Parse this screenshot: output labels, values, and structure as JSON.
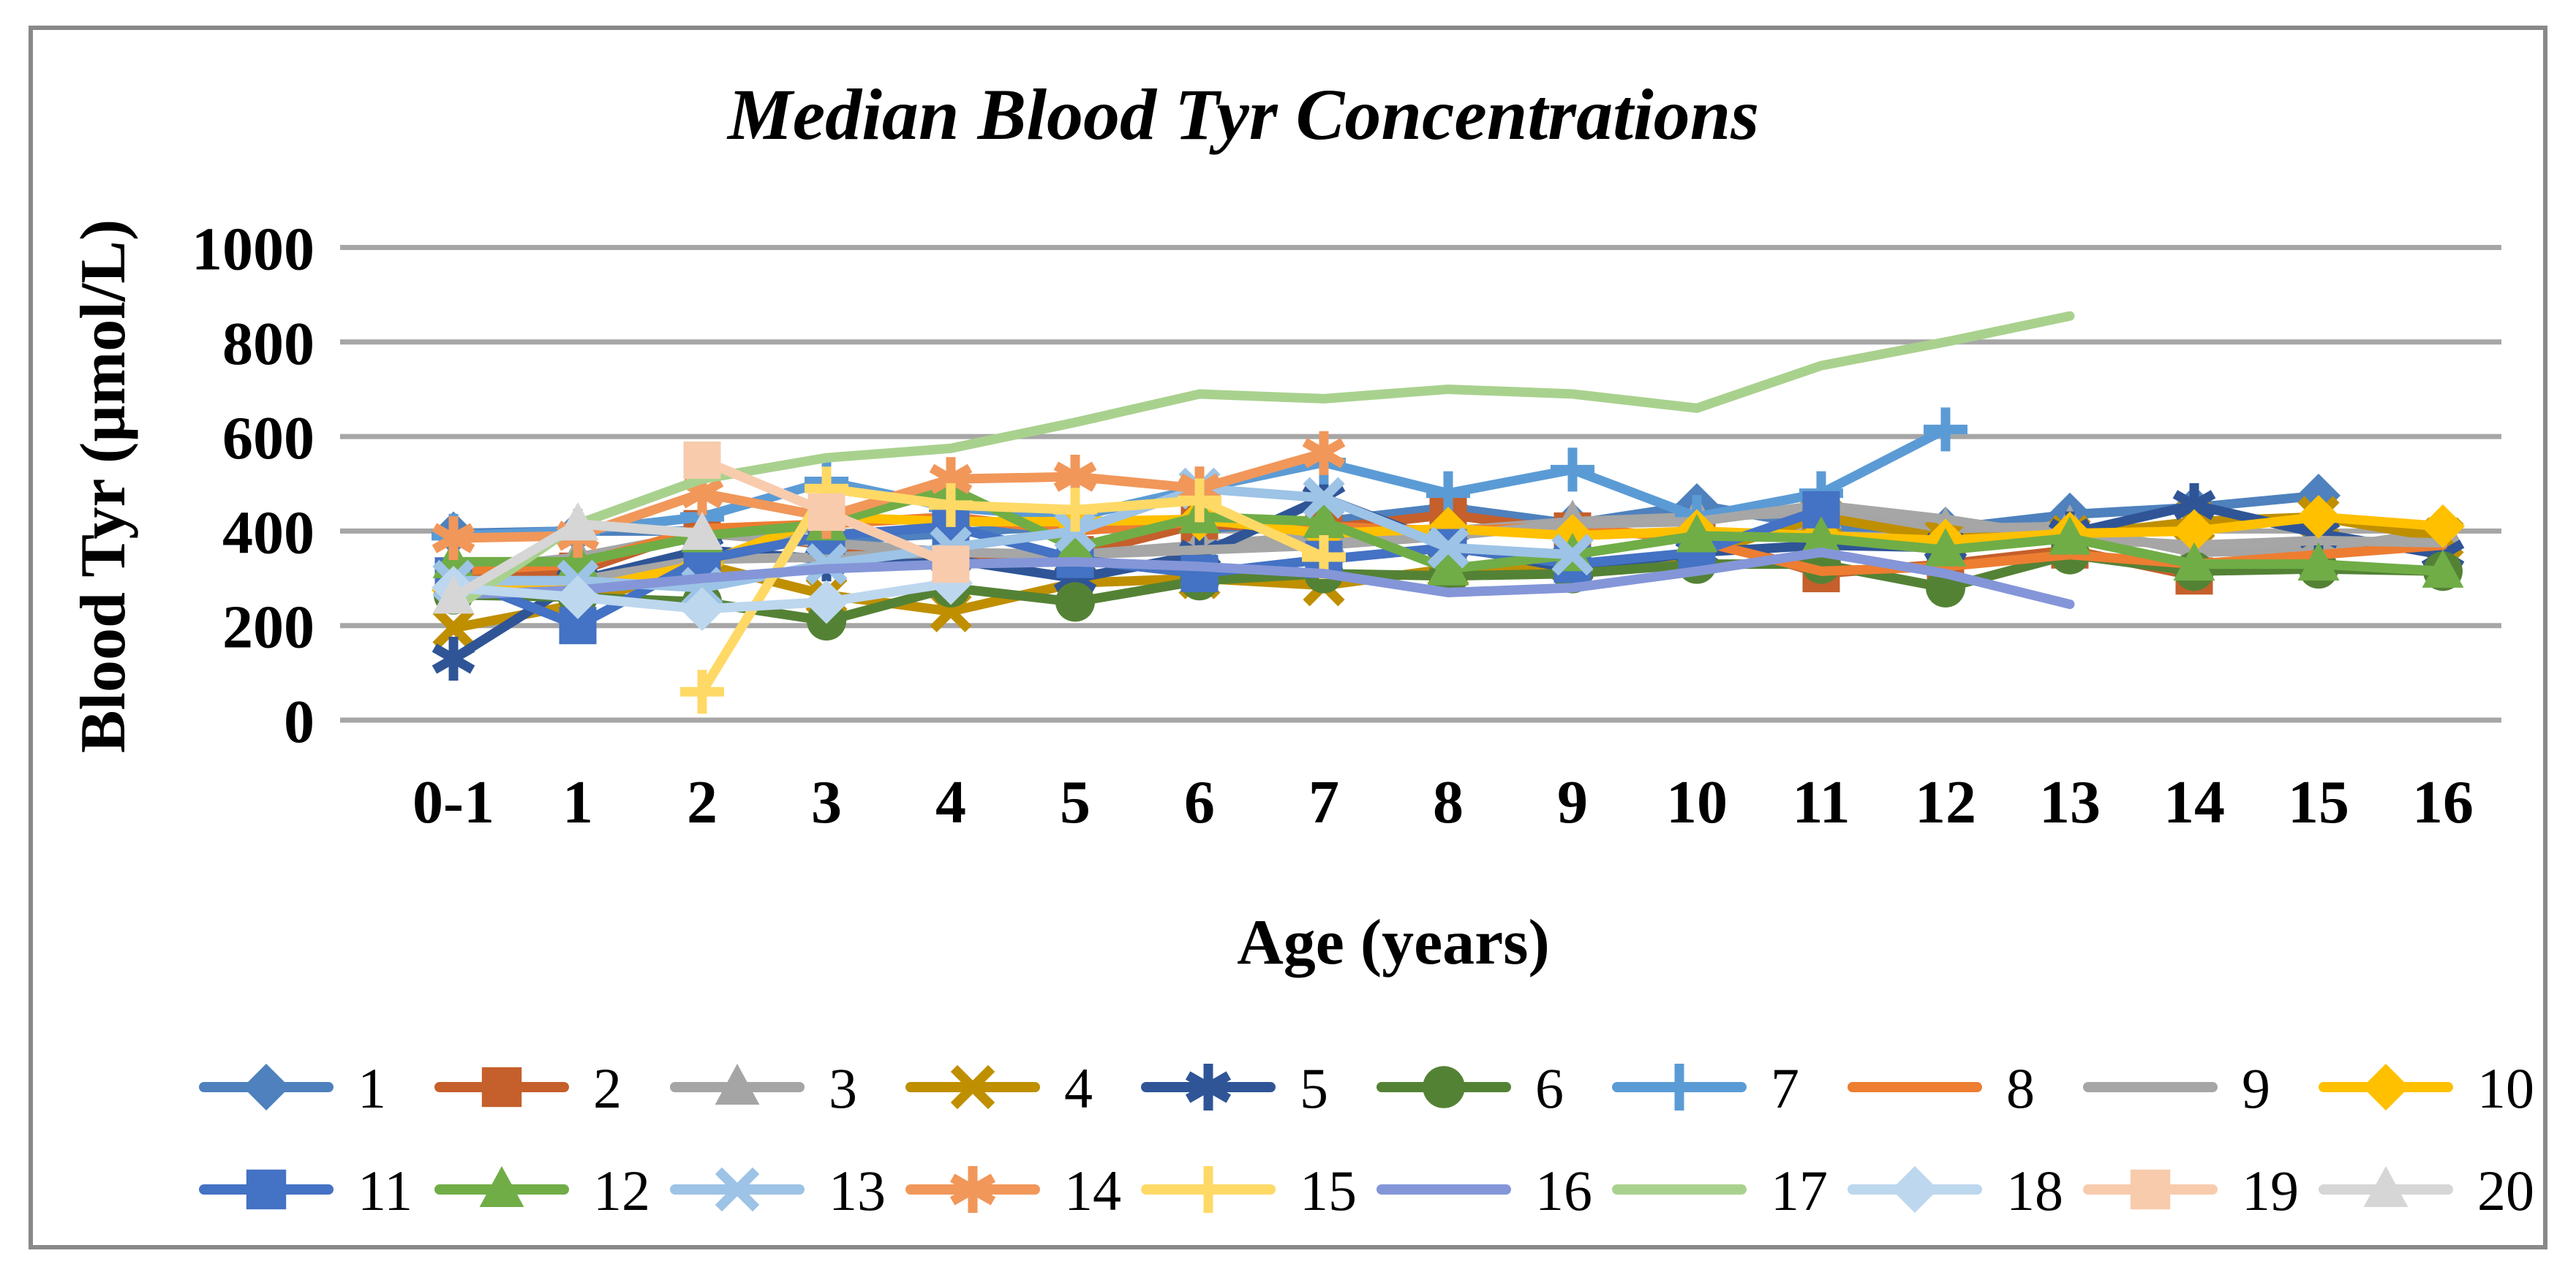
{
  "window": {
    "background": "#ffffff",
    "border_color": "#898989",
    "gridline_color": "#A6A6A6"
  },
  "chart_data": {
    "type": "line",
    "title": "Median Blood Tyr Concentrations",
    "xlabel": "Age (years)",
    "ylabel": "Blood Tyr (µmol/L)",
    "ylim": [
      0,
      1000
    ],
    "y_ticks": [
      "0",
      "200",
      "400",
      "600",
      "800",
      "1000"
    ],
    "y_tick_values": [
      0,
      200,
      400,
      600,
      800,
      1000
    ],
    "grid": "horizontal",
    "legend_position": "bottom",
    "legend_rows": 2,
    "categories": [
      "0-1",
      "1",
      "2",
      "3",
      "4",
      "5",
      "6",
      "7",
      "8",
      "9",
      "10",
      "11",
      "12",
      "13",
      "14",
      "15",
      "16"
    ],
    "series": [
      {
        "name": "1",
        "color": "#4E81BD",
        "marker": "diamond",
        "start": 0,
        "values": [
          395,
          400,
          400,
          380,
          395,
          415,
          405,
          420,
          450,
          415,
          455,
          410,
          405,
          435,
          450,
          475
        ]
      },
      {
        "name": "2",
        "color": "#C55F2B",
        "marker": "square",
        "start": 0,
        "values": [
          305,
          315,
          405,
          370,
          340,
          350,
          415,
          405,
          435,
          400,
          390,
          310,
          330,
          360,
          305
        ]
      },
      {
        "name": "3",
        "color": "#A5A5A5",
        "marker": "triangle",
        "start": 0,
        "values": [
          315,
          345,
          395,
          375,
          355,
          350,
          370,
          390,
          400,
          420,
          430,
          440,
          405,
          410,
          355,
          360,
          400
        ]
      },
      {
        "name": "4",
        "color": "#BF8F00",
        "marker": "x",
        "start": 0,
        "values": [
          195,
          245,
          330,
          265,
          230,
          290,
          300,
          285,
          320,
          330,
          350,
          430,
          385,
          390,
          420,
          430,
          385
        ]
      },
      {
        "name": "5",
        "color": "#2F5597",
        "marker": "asterisk",
        "start": 0,
        "values": [
          130,
          295,
          360,
          340,
          340,
          300,
          350,
          470,
          370,
          320,
          355,
          370,
          365,
          395,
          455,
          395,
          350
        ]
      },
      {
        "name": "6",
        "color": "#548235",
        "marker": "circle",
        "start": 0,
        "values": [
          265,
          260,
          250,
          210,
          280,
          250,
          295,
          310,
          305,
          310,
          330,
          330,
          280,
          350,
          315,
          320,
          315
        ]
      },
      {
        "name": "7",
        "color": "#5B9BD5",
        "marker": "plus",
        "start": 0,
        "values": [
          390,
          400,
          430,
          505,
          450,
          430,
          490,
          545,
          480,
          530,
          430,
          480,
          615
        ]
      },
      {
        "name": "8",
        "color": "#ED7D31",
        "marker": "none",
        "start": 0,
        "values": [
          315,
          330,
          405,
          415,
          430,
          400,
          420,
          410,
          400,
          410,
          380,
          315,
          325,
          350,
          330,
          350,
          370
        ]
      },
      {
        "name": "9",
        "color": "#A6A6A6",
        "marker": "none",
        "start": 0,
        "values": [
          295,
          295,
          340,
          345,
          355,
          350,
          360,
          370,
          390,
          415,
          420,
          455,
          425,
          385,
          370,
          380,
          375
        ]
      },
      {
        "name": "10",
        "color": "#FFC000",
        "marker": "diamond",
        "start": 0,
        "values": [
          275,
          275,
          330,
          430,
          420,
          420,
          425,
          395,
          405,
          390,
          400,
          390,
          380,
          395,
          400,
          430,
          410
        ]
      },
      {
        "name": "11",
        "color": "#4472C4",
        "marker": "square",
        "start": 0,
        "values": [
          305,
          200,
          340,
          390,
          410,
          340,
          310,
          340,
          365,
          330,
          355,
          445
        ]
      },
      {
        "name": "12",
        "color": "#70AD47",
        "marker": "triangle",
        "start": 0,
        "values": [
          335,
          335,
          390,
          415,
          490,
          365,
          430,
          420,
          320,
          350,
          390,
          385,
          360,
          385,
          330,
          330,
          315
        ]
      },
      {
        "name": "13",
        "color": "#9DC3E6",
        "marker": "x",
        "start": 0,
        "values": [
          295,
          295,
          280,
          330,
          365,
          400,
          490,
          470,
          365,
          350
        ]
      },
      {
        "name": "14",
        "color": "#F1975A",
        "marker": "asterisk",
        "start": 0,
        "values": [
          385,
          390,
          480,
          430,
          510,
          515,
          490,
          565
        ]
      },
      {
        "name": "15",
        "color": "#FFD966",
        "marker": "plus",
        "start": 2,
        "values": [
          60,
          490,
          455,
          445,
          465,
          345
        ]
      },
      {
        "name": "16",
        "color": "#8496D8",
        "marker": "none",
        "start": 0,
        "values": [
          265,
          275,
          300,
          320,
          330,
          335,
          325,
          310,
          270,
          280,
          315,
          355,
          310,
          245
        ]
      },
      {
        "name": "17",
        "color": "#A9D18E",
        "marker": "none",
        "start": 0,
        "values": [
          235,
          415,
          510,
          555,
          575,
          630,
          690,
          680,
          700,
          690,
          660,
          750,
          800,
          855
        ]
      },
      {
        "name": "18",
        "color": "#BDD7EE",
        "marker": "diamond",
        "start": 0,
        "values": [
          280,
          260,
          235,
          250,
          290
        ]
      },
      {
        "name": "19",
        "color": "#F8CBAD",
        "marker": "square",
        "start": 2,
        "values": [
          550,
          440,
          330
        ]
      },
      {
        "name": "20",
        "color": "#D6D6D6",
        "marker": "triangle",
        "start": 0,
        "values": [
          260,
          415,
          395
        ]
      }
    ]
  }
}
